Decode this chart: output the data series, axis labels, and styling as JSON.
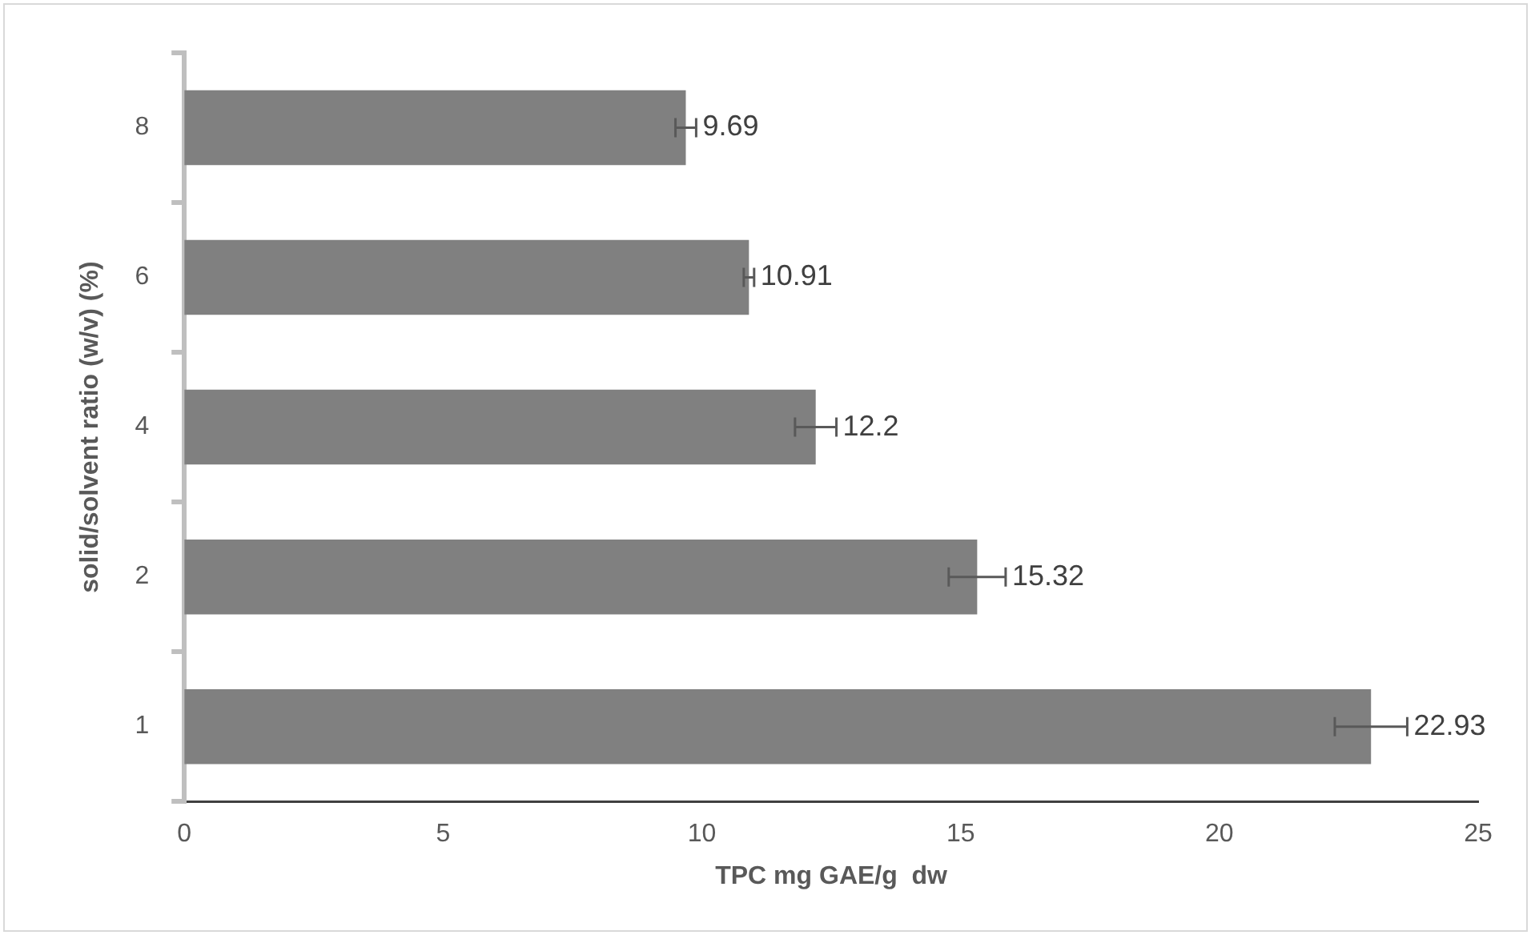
{
  "chart_data": {
    "type": "bar",
    "orientation": "horizontal",
    "xlabel": "TPC mg GAE/g  dw",
    "ylabel": "solid/solvent ratio (w/v) (%)",
    "categories": [
      "8",
      "6",
      "4",
      "2",
      "1"
    ],
    "values": [
      9.69,
      10.91,
      12.2,
      15.32,
      22.93
    ],
    "errors": [
      0.2,
      0.1,
      0.4,
      0.55,
      0.7
    ],
    "color": "#808080",
    "xlim": [
      0,
      25
    ],
    "xticks": [
      0,
      5,
      10,
      15,
      20,
      25
    ],
    "grid": false,
    "legend": false,
    "data_labels": true
  }
}
